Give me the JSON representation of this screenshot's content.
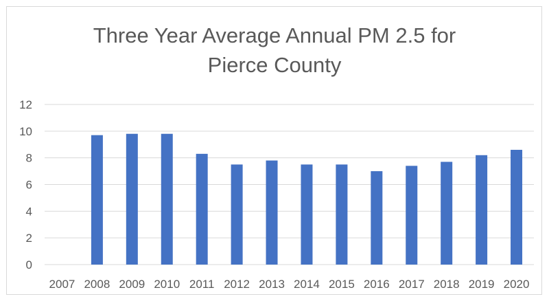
{
  "chart_data": {
    "type": "bar",
    "title_line1": "Three Year Average Annual PM 2.5 for",
    "title_line2": "Pierce County",
    "xlabel": "",
    "ylabel": "",
    "categories": [
      "2007",
      "2008",
      "2009",
      "2010",
      "2011",
      "2012",
      "2013",
      "2014",
      "2015",
      "2016",
      "2017",
      "2018",
      "2019",
      "2020"
    ],
    "values": [
      null,
      9.7,
      9.8,
      9.8,
      8.3,
      7.5,
      7.8,
      7.5,
      7.5,
      7.0,
      7.4,
      7.7,
      8.2,
      8.6
    ],
    "ylim": [
      0,
      12
    ],
    "yticks": [
      "0",
      "2",
      "4",
      "6",
      "8",
      "10",
      "12"
    ],
    "grid": true,
    "legend": "none",
    "bar_color": "#4472c4",
    "grid_color": "#d9d9d9"
  }
}
